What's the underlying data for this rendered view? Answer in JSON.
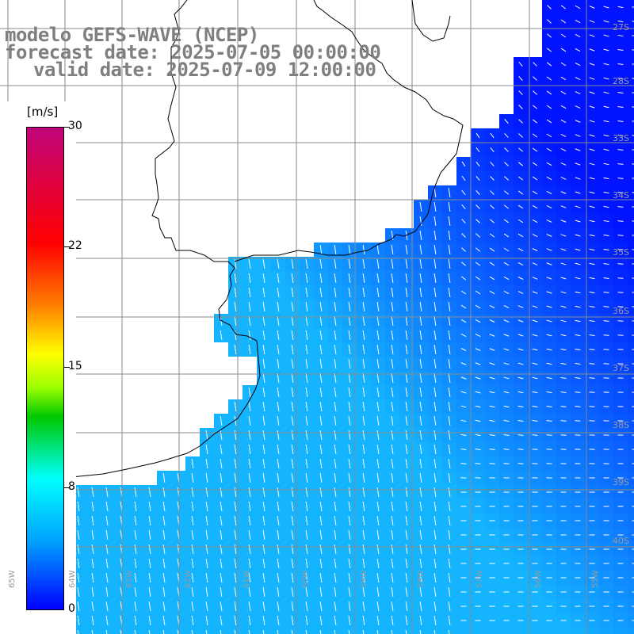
{
  "title": {
    "line1": "modelo GEFS-WAVE (NCEP)",
    "line2": "forecast date: 2025-07-05 00:00:00",
    "line3": "valid date: 2025-07-09 12:00:00"
  },
  "colorbar": {
    "unit": "[m/s]",
    "ticks": [
      "30",
      "22",
      "15",
      "8",
      "0"
    ],
    "tick_values": [
      30,
      22,
      15,
      8,
      0
    ],
    "min": 0,
    "max": 30,
    "colors": [
      "#0000ff",
      "#00a0ff",
      "#00ffff",
      "#00c800",
      "#9bff00",
      "#ffff00",
      "#ff8000",
      "#ff0000",
      "#c0047a"
    ]
  },
  "lat_labels": [
    "27S",
    "28S",
    "33S",
    "34S",
    "35S",
    "36S",
    "37S",
    "38S",
    "39S",
    "40S"
  ],
  "lon_labels": [
    "65W",
    "64W",
    "63W",
    "62W",
    "61W",
    "60W",
    "59W",
    "58W",
    "57W",
    "56W",
    "55W"
  ],
  "colors": {
    "land": "#ffffff",
    "coastline": "#000000",
    "grid": "#808080",
    "arrows": "#ffffff",
    "text": "#7f7f7f"
  },
  "field": {
    "variable": "wind speed",
    "unit": "m/s",
    "typical_range": [
      3,
      9
    ]
  }
}
